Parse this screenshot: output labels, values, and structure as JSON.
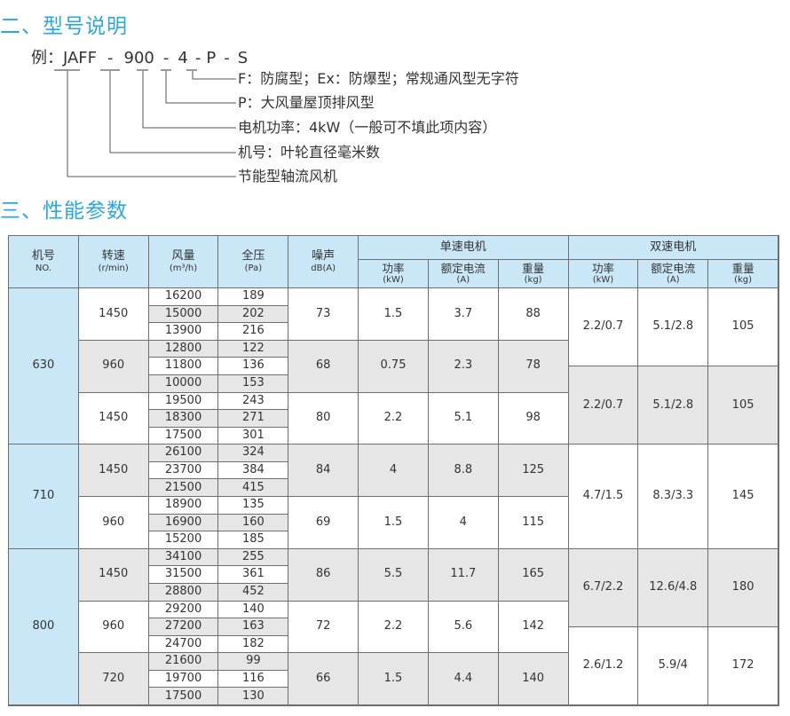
{
  "section2": {
    "title": "二、型号说明"
  },
  "example": {
    "prefix": "例：",
    "parts": [
      "JAFF",
      "900",
      "4",
      "P",
      "S"
    ],
    "sep": "-",
    "descriptions": [
      "F：防腐型；Ex：防爆型；常规通风型无字符",
      "P：大风量屋顶排风型",
      "电机功率：4kW（一般可不填此项内容）",
      "机号：叶轮直径毫米数",
      "节能型轴流风机"
    ]
  },
  "section3": {
    "title": "三、性能参数"
  },
  "table": {
    "headers": {
      "no": [
        "机号",
        "NO."
      ],
      "speed": [
        "转速",
        "(r/min)"
      ],
      "flow": [
        "风量",
        "(m³/h)"
      ],
      "pressure": [
        "全压",
        "(Pa)"
      ],
      "noise": [
        "噪声",
        "dB(A)"
      ],
      "single": "单速电机",
      "double": "双速电机",
      "power": [
        "功率",
        "(kW)"
      ],
      "current": [
        "额定电流",
        "(A)"
      ],
      "weight": [
        "重量",
        "(kg)"
      ]
    },
    "colors": {
      "header": "#c9e7f6",
      "shade": "#e6e6e6",
      "accent": "#29a8e0"
    },
    "machines": [
      {
        "no": "630",
        "groups": [
          {
            "speed": "1450",
            "rows": [
              [
                "16200",
                "189"
              ],
              [
                "15000",
                "202"
              ],
              [
                "13900",
                "216"
              ]
            ],
            "noise": "73",
            "power": "1.5",
            "current": "3.7",
            "weight": "88"
          },
          {
            "speed": "960",
            "rows": [
              [
                "12800",
                "122"
              ],
              [
                "11800",
                "136"
              ],
              [
                "10000",
                "153"
              ]
            ],
            "noise": "68",
            "power": "0.75",
            "current": "2.3",
            "weight": "78"
          },
          {
            "speed": "1450",
            "rows": [
              [
                "19500",
                "243"
              ],
              [
                "18300",
                "271"
              ],
              [
                "17500",
                "301"
              ]
            ],
            "noise": "80",
            "power": "2.2",
            "current": "5.1",
            "weight": "98"
          }
        ]
      },
      {
        "no": "710",
        "groups": [
          {
            "speed": "1450",
            "rows": [
              [
                "26100",
                "324"
              ],
              [
                "23700",
                "384"
              ],
              [
                "21500",
                "415"
              ]
            ],
            "noise": "84",
            "power": "4",
            "current": "8.8",
            "weight": "125"
          },
          {
            "speed": "960",
            "rows": [
              [
                "18900",
                "135"
              ],
              [
                "16900",
                "160"
              ],
              [
                "15200",
                "185"
              ]
            ],
            "noise": "69",
            "power": "1.5",
            "current": "4",
            "weight": "115"
          }
        ]
      },
      {
        "no": "800",
        "groups": [
          {
            "speed": "1450",
            "rows": [
              [
                "34100",
                "255"
              ],
              [
                "31500",
                "361"
              ],
              [
                "28800",
                "452"
              ]
            ],
            "noise": "86",
            "power": "5.5",
            "current": "11.7",
            "weight": "165"
          },
          {
            "speed": "960",
            "rows": [
              [
                "29200",
                "140"
              ],
              [
                "27200",
                "163"
              ],
              [
                "24700",
                "182"
              ]
            ],
            "noise": "72",
            "power": "2.2",
            "current": "5.6",
            "weight": "142"
          },
          {
            "speed": "720",
            "rows": [
              [
                "21600",
                "99"
              ],
              [
                "19700",
                "116"
              ],
              [
                "17500",
                "130"
              ]
            ],
            "noise": "66",
            "power": "1.5",
            "current": "4.4",
            "weight": "140"
          }
        ]
      }
    ],
    "double_speed": [
      {
        "power": "2.2/0.7",
        "current": "5.1/2.8",
        "weight": "105",
        "span_rows": 4.5,
        "shaded": false
      },
      {
        "power": "2.2/0.7",
        "current": "5.1/2.8",
        "weight": "105",
        "span_rows": 4.5,
        "shaded": true
      },
      {
        "power": "4.7/1.5",
        "current": "8.3/3.3",
        "weight": "145",
        "span_rows": 6,
        "shaded": false
      },
      {
        "power": "6.7/2.2",
        "current": "12.6/4.8",
        "weight": "180",
        "span_rows": 4.5,
        "shaded": true
      },
      {
        "power": "2.6/1.2",
        "current": "5.9/4",
        "weight": "172",
        "span_rows": 4.5,
        "shaded": false
      }
    ],
    "group_shading": [
      [
        false,
        true,
        false
      ],
      [
        true,
        false
      ],
      [
        true,
        false,
        true
      ]
    ]
  }
}
